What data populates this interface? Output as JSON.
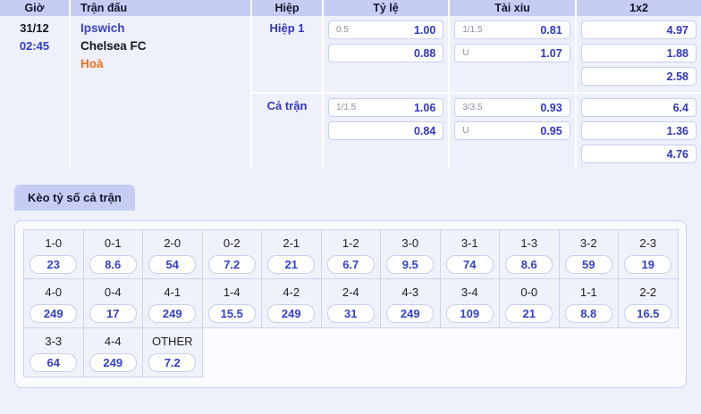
{
  "colors": {
    "header_bg": "#c6cdf3",
    "table_bg": "#eef1fb",
    "page_bg": "#eef0fa",
    "accent_indigo": "#2e36c8",
    "draw_orange": "#f86f15",
    "odds_box_border": "#c7cfef"
  },
  "match_table": {
    "headers": {
      "time": "Giờ",
      "match": "Trận đấu",
      "period": "Hiệp",
      "handicap": "Tỷ lệ",
      "over_under": "Tài xỉu",
      "one_x_two": "1x2"
    },
    "time": {
      "date": "31/12",
      "kickoff": "02:45"
    },
    "match": {
      "home": "Ipswich",
      "away": "Chelsea FC",
      "draw": "Hoà"
    },
    "periods": [
      {
        "label": "Hiệp 1",
        "handicap": [
          {
            "line": "0.5",
            "odds": "1.00"
          },
          {
            "line": "",
            "odds": "0.88"
          }
        ],
        "over_under": [
          {
            "line": "1/1.5",
            "odds": "0.81"
          },
          {
            "line": "U",
            "odds": "1.07"
          }
        ],
        "one_x_two": [
          "4.97",
          "1.88",
          "2.58"
        ]
      },
      {
        "label": "Cả trận",
        "handicap": [
          {
            "line": "1/1.5",
            "odds": "1.06"
          },
          {
            "line": "",
            "odds": "0.84"
          }
        ],
        "over_under": [
          {
            "line": "3/3.5",
            "odds": "0.93"
          },
          {
            "line": "U",
            "odds": "0.95"
          }
        ],
        "one_x_two": [
          "6.4",
          "1.36",
          "4.76"
        ]
      }
    ]
  },
  "score_section": {
    "tab_label": "Kèo tỷ số cả trận",
    "rows": [
      [
        {
          "score": "1-0",
          "odds": "23"
        },
        {
          "score": "0-1",
          "odds": "8.6"
        },
        {
          "score": "2-0",
          "odds": "54"
        },
        {
          "score": "0-2",
          "odds": "7.2"
        },
        {
          "score": "2-1",
          "odds": "21"
        },
        {
          "score": "1-2",
          "odds": "6.7"
        },
        {
          "score": "3-0",
          "odds": "9.5"
        },
        {
          "score": "3-1",
          "odds": "74"
        },
        {
          "score": "1-3",
          "odds": "8.6"
        },
        {
          "score": "3-2",
          "odds": "59"
        },
        {
          "score": "2-3",
          "odds": "19"
        }
      ],
      [
        {
          "score": "4-0",
          "odds": "249"
        },
        {
          "score": "0-4",
          "odds": "17"
        },
        {
          "score": "4-1",
          "odds": "249"
        },
        {
          "score": "1-4",
          "odds": "15.5"
        },
        {
          "score": "4-2",
          "odds": "249"
        },
        {
          "score": "2-4",
          "odds": "31"
        },
        {
          "score": "4-3",
          "odds": "249"
        },
        {
          "score": "3-4",
          "odds": "109"
        },
        {
          "score": "0-0",
          "odds": "21"
        },
        {
          "score": "1-1",
          "odds": "8.8"
        },
        {
          "score": "2-2",
          "odds": "16.5"
        }
      ],
      [
        {
          "score": "3-3",
          "odds": "64"
        },
        {
          "score": "4-4",
          "odds": "249"
        },
        {
          "score": "OTHER",
          "odds": "7.2"
        }
      ]
    ]
  }
}
